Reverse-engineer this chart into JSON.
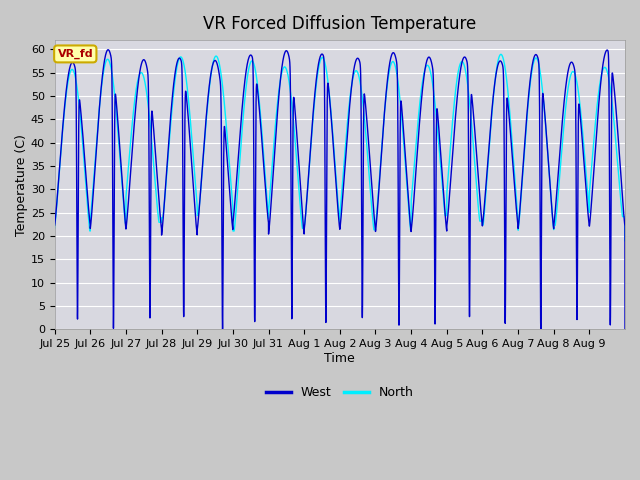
{
  "title": "VR Forced Diffusion Temperature",
  "ylabel": "Temperature (C)",
  "xlabel": "Time",
  "ylim": [
    0,
    62
  ],
  "yticks": [
    0,
    5,
    10,
    15,
    20,
    25,
    30,
    35,
    40,
    45,
    50,
    55,
    60
  ],
  "west_color": "#0000cc",
  "north_color": "#00eeff",
  "fig_bg": "#c8c8c8",
  "plot_bg": "#d8d8e0",
  "legend_label": "VR_fd",
  "legend_box_color": "#ffffaa",
  "legend_box_edge": "#ccaa00",
  "legend_text_color": "#aa0000",
  "x_labels": [
    "Jul 25",
    "Jul 26",
    "Jul 27",
    "Jul 28",
    "Jul 29",
    "Jul 30",
    "Jul 31",
    "Aug 1",
    "Aug 2",
    "Aug 3",
    "Aug 4",
    "Aug 5",
    "Aug 6",
    "Aug 7",
    "Aug 8",
    "Aug 9"
  ],
  "title_fontsize": 12,
  "axis_label_fontsize": 9,
  "tick_fontsize": 8,
  "num_days": 16
}
